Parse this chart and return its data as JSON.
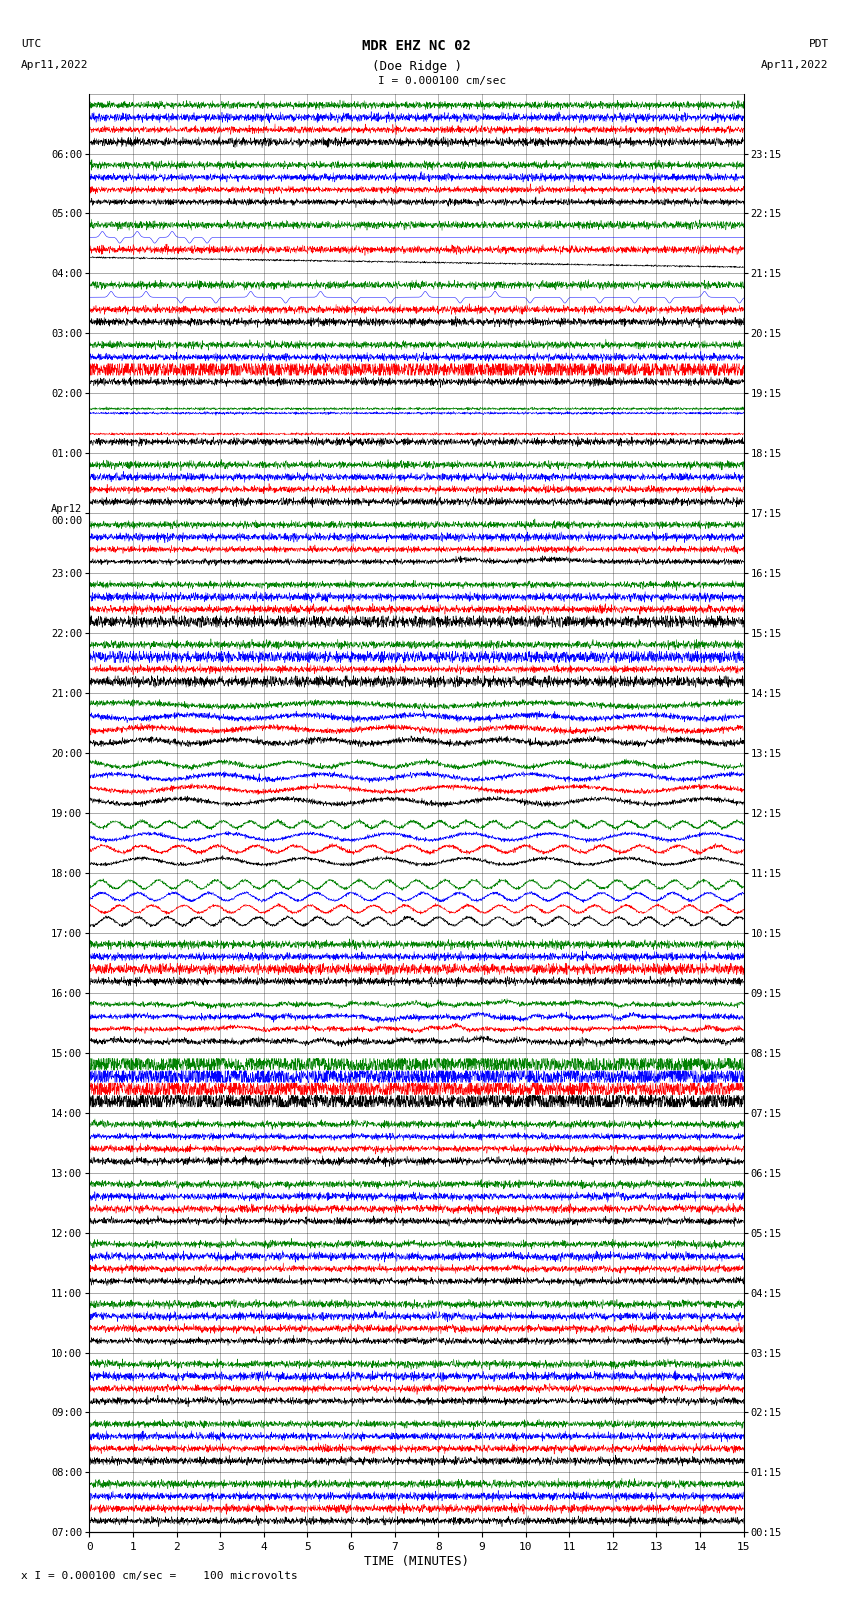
{
  "title_line1": "MDR EHZ NC 02",
  "title_line2": "(Doe Ridge )",
  "scale_text": "I = 0.000100 cm/sec",
  "left_label_top": "UTC",
  "left_label_date": "Apr11,2022",
  "right_label_top": "PDT",
  "right_label_date": "Apr11,2022",
  "bottom_xlabel": "TIME (MINUTES)",
  "bottom_note": "x I = 0.000100 cm/sec =    100 microvolts",
  "x_ticks": [
    0,
    1,
    2,
    3,
    4,
    5,
    6,
    7,
    8,
    9,
    10,
    11,
    12,
    13,
    14,
    15
  ],
  "left_times": [
    "07:00",
    "08:00",
    "09:00",
    "10:00",
    "11:00",
    "12:00",
    "13:00",
    "14:00",
    "15:00",
    "16:00",
    "17:00",
    "18:00",
    "19:00",
    "20:00",
    "21:00",
    "22:00",
    "23:00",
    "Apr12\n00:00",
    "01:00",
    "02:00",
    "03:00",
    "04:00",
    "05:00",
    "06:00"
  ],
  "right_times": [
    "00:15",
    "01:15",
    "02:15",
    "03:15",
    "04:15",
    "05:15",
    "06:15",
    "07:15",
    "08:15",
    "09:15",
    "10:15",
    "11:15",
    "12:15",
    "13:15",
    "14:15",
    "15:15",
    "16:15",
    "17:15",
    "18:15",
    "19:15",
    "20:15",
    "21:15",
    "22:15",
    "23:15"
  ],
  "n_rows": 24,
  "traces_per_row": 4,
  "colors": [
    "black",
    "red",
    "blue",
    "green"
  ],
  "bg_color": "#ffffff",
  "fig_width": 8.5,
  "fig_height": 16.13,
  "dpi": 100,
  "seed": 42
}
